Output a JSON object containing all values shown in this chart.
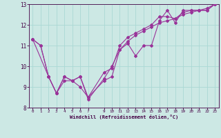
{
  "title": "",
  "xlabel": "Windchill (Refroidissement éolien,°C)",
  "background_color": "#cce8e4",
  "grid_color": "#aad8d4",
  "line_color": "#993399",
  "xlim": [
    -0.5,
    23.5
  ],
  "ylim": [
    8,
    13
  ],
  "yticks": [
    8,
    9,
    10,
    11,
    12,
    13
  ],
  "xticks": [
    0,
    1,
    2,
    3,
    4,
    5,
    6,
    7,
    9,
    10,
    11,
    12,
    13,
    14,
    15,
    16,
    17,
    18,
    19,
    20,
    21,
    22,
    23
  ],
  "line1_x": [
    0,
    1,
    2,
    3,
    4,
    5,
    6,
    7,
    9,
    10,
    11,
    12,
    13,
    14,
    15,
    16,
    17,
    18,
    19,
    20,
    21,
    22,
    23
  ],
  "line1_y": [
    11.3,
    11.0,
    9.5,
    8.7,
    9.5,
    9.3,
    9.0,
    8.5,
    9.3,
    9.5,
    10.8,
    11.1,
    10.5,
    11.0,
    11.0,
    12.2,
    12.7,
    12.1,
    12.7,
    12.7,
    12.7,
    12.7,
    13.0
  ],
  "line2_x": [
    0,
    1,
    2,
    3,
    4,
    5,
    6,
    7,
    9,
    10,
    11,
    12,
    13,
    14,
    15,
    16,
    17,
    18,
    19,
    20,
    21,
    22,
    23
  ],
  "line2_y": [
    11.3,
    11.0,
    9.5,
    8.7,
    9.5,
    9.3,
    9.5,
    8.4,
    9.4,
    10.0,
    10.8,
    11.2,
    11.5,
    11.7,
    11.9,
    12.1,
    12.2,
    12.3,
    12.5,
    12.6,
    12.7,
    12.8,
    13.0
  ],
  "line3_x": [
    0,
    2,
    3,
    4,
    5,
    6,
    7,
    9,
    10,
    11,
    12,
    13,
    14,
    15,
    16,
    17,
    18,
    19,
    20,
    21,
    22,
    23
  ],
  "line3_y": [
    11.3,
    9.5,
    8.7,
    9.3,
    9.3,
    9.5,
    8.5,
    9.7,
    9.9,
    11.0,
    11.4,
    11.6,
    11.8,
    12.0,
    12.4,
    12.4,
    12.3,
    12.6,
    12.7,
    12.7,
    12.7,
    13.0
  ]
}
